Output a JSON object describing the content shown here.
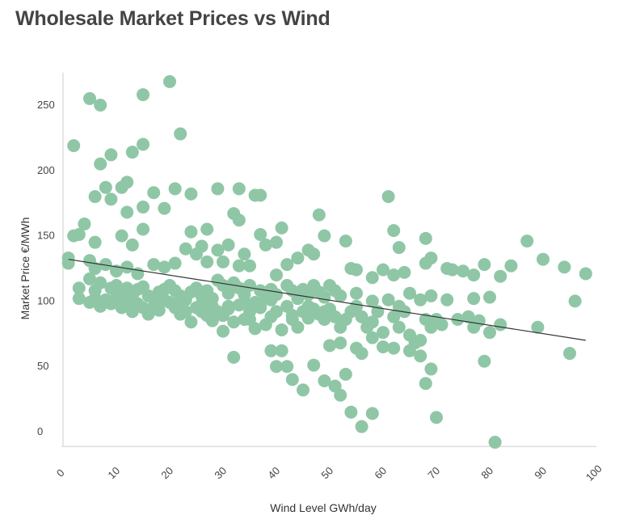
{
  "chart_data": {
    "type": "scatter",
    "title": "Wholesale Market Prices vs Wind",
    "xlabel": "Wind Level GWh/day",
    "ylabel": "Market Price €/MWh",
    "xlim": [
      0,
      100
    ],
    "ylim": [
      -10,
      275
    ],
    "x_ticks": [
      0,
      10,
      20,
      30,
      40,
      50,
      60,
      70,
      80,
      90,
      100
    ],
    "y_ticks": [
      0,
      50,
      100,
      150,
      200,
      250
    ],
    "grid": false,
    "colors": {
      "point": "#8fc7a6",
      "trendline": "#333333",
      "axis": "#cccccc",
      "text": "#444444"
    },
    "trendline": {
      "x": [
        1,
        98
      ],
      "y": [
        132,
        70
      ]
    },
    "points": [
      [
        2,
        219
      ],
      [
        5,
        255
      ],
      [
        7,
        250
      ],
      [
        15,
        258
      ],
      [
        20,
        268
      ],
      [
        22,
        228
      ],
      [
        15,
        220
      ],
      [
        7,
        205
      ],
      [
        9,
        212
      ],
      [
        13,
        214
      ],
      [
        8,
        187
      ],
      [
        9,
        178
      ],
      [
        11,
        187
      ],
      [
        12,
        191
      ],
      [
        6,
        180
      ],
      [
        15,
        172
      ],
      [
        17,
        183
      ],
      [
        19,
        171
      ],
      [
        21,
        186
      ],
      [
        24,
        182
      ],
      [
        29,
        186
      ],
      [
        33,
        186
      ],
      [
        36,
        181
      ],
      [
        37,
        181
      ],
      [
        61,
        180
      ],
      [
        12,
        168
      ],
      [
        4,
        159
      ],
      [
        2,
        150
      ],
      [
        3,
        151
      ],
      [
        6,
        145
      ],
      [
        11,
        150
      ],
      [
        13,
        143
      ],
      [
        15,
        155
      ],
      [
        24,
        153
      ],
      [
        26,
        142
      ],
      [
        27,
        155
      ],
      [
        31,
        143
      ],
      [
        32,
        167
      ],
      [
        33,
        162
      ],
      [
        37,
        151
      ],
      [
        38,
        143
      ],
      [
        40,
        145
      ],
      [
        41,
        156
      ],
      [
        44,
        133
      ],
      [
        46,
        139
      ],
      [
        48,
        166
      ],
      [
        49,
        150
      ],
      [
        53,
        146
      ],
      [
        62,
        154
      ],
      [
        63,
        141
      ],
      [
        68,
        148
      ],
      [
        87,
        146
      ],
      [
        1,
        129
      ],
      [
        1,
        133
      ],
      [
        5,
        131
      ],
      [
        6,
        125
      ],
      [
        8,
        128
      ],
      [
        10,
        123
      ],
      [
        12,
        126
      ],
      [
        14,
        121
      ],
      [
        17,
        128
      ],
      [
        19,
        126
      ],
      [
        21,
        129
      ],
      [
        23,
        140
      ],
      [
        25,
        136
      ],
      [
        27,
        130
      ],
      [
        29,
        139
      ],
      [
        30,
        130
      ],
      [
        33,
        127
      ],
      [
        34,
        136
      ],
      [
        35,
        127
      ],
      [
        42,
        128
      ],
      [
        47,
        136
      ],
      [
        54,
        125
      ],
      [
        55,
        124
      ],
      [
        58,
        118
      ],
      [
        60,
        124
      ],
      [
        62,
        120
      ],
      [
        64,
        122
      ],
      [
        68,
        129
      ],
      [
        69,
        133
      ],
      [
        72,
        125
      ],
      [
        73,
        124
      ],
      [
        75,
        123
      ],
      [
        77,
        120
      ],
      [
        79,
        128
      ],
      [
        82,
        119
      ],
      [
        84,
        127
      ],
      [
        90,
        132
      ],
      [
        94,
        126
      ],
      [
        98,
        121
      ],
      [
        3,
        110
      ],
      [
        5,
        117
      ],
      [
        6,
        108
      ],
      [
        7,
        114
      ],
      [
        9,
        110
      ],
      [
        10,
        112
      ],
      [
        11,
        106
      ],
      [
        12,
        110
      ],
      [
        13,
        103
      ],
      [
        14,
        109
      ],
      [
        15,
        111
      ],
      [
        16,
        104
      ],
      [
        18,
        107
      ],
      [
        19,
        109
      ],
      [
        20,
        112
      ],
      [
        21,
        108
      ],
      [
        22,
        104
      ],
      [
        23,
        101
      ],
      [
        24,
        107
      ],
      [
        25,
        110
      ],
      [
        26,
        104
      ],
      [
        27,
        108
      ],
      [
        28,
        102
      ],
      [
        29,
        116
      ],
      [
        30,
        112
      ],
      [
        31,
        106
      ],
      [
        32,
        114
      ],
      [
        33,
        110
      ],
      [
        34,
        105
      ],
      [
        35,
        112
      ],
      [
        37,
        108
      ],
      [
        38,
        103
      ],
      [
        39,
        109
      ],
      [
        40,
        105
      ],
      [
        42,
        112
      ],
      [
        43,
        108
      ],
      [
        44,
        102
      ],
      [
        45,
        109
      ],
      [
        46,
        105
      ],
      [
        47,
        112
      ],
      [
        48,
        107
      ],
      [
        49,
        103
      ],
      [
        50,
        112
      ],
      [
        51,
        108
      ],
      [
        52,
        104
      ],
      [
        55,
        106
      ],
      [
        58,
        100
      ],
      [
        61,
        101
      ],
      [
        63,
        96
      ],
      [
        65,
        106
      ],
      [
        67,
        101
      ],
      [
        69,
        104
      ],
      [
        72,
        101
      ],
      [
        77,
        102
      ],
      [
        80,
        103
      ],
      [
        96,
        100
      ],
      [
        3,
        102
      ],
      [
        5,
        99
      ],
      [
        6,
        102
      ],
      [
        7,
        96
      ],
      [
        8,
        101
      ],
      [
        9,
        98
      ],
      [
        10,
        103
      ],
      [
        11,
        95
      ],
      [
        12,
        100
      ],
      [
        13,
        92
      ],
      [
        14,
        98
      ],
      [
        15,
        95
      ],
      [
        16,
        90
      ],
      [
        17,
        96
      ],
      [
        18,
        93
      ],
      [
        20,
        99
      ],
      [
        21,
        95
      ],
      [
        22,
        97
      ],
      [
        23,
        92
      ],
      [
        24,
        84
      ],
      [
        25,
        95
      ],
      [
        26,
        92
      ],
      [
        27,
        89
      ],
      [
        28,
        96
      ],
      [
        29,
        92
      ],
      [
        30,
        89
      ],
      [
        31,
        94
      ],
      [
        32,
        84
      ],
      [
        33,
        97
      ],
      [
        34,
        86
      ],
      [
        35,
        92
      ],
      [
        36,
        79
      ],
      [
        37,
        95
      ],
      [
        38,
        82
      ],
      [
        39,
        88
      ],
      [
        40,
        92
      ],
      [
        41,
        78
      ],
      [
        42,
        96
      ],
      [
        43,
        86
      ],
      [
        44,
        80
      ],
      [
        45,
        92
      ],
      [
        46,
        87
      ],
      [
        47,
        94
      ],
      [
        48,
        90
      ],
      [
        49,
        86
      ],
      [
        50,
        94
      ],
      [
        51,
        88
      ],
      [
        52,
        80
      ],
      [
        53,
        86
      ],
      [
        54,
        92
      ],
      [
        55,
        96
      ],
      [
        56,
        88
      ],
      [
        57,
        80
      ],
      [
        58,
        84
      ],
      [
        59,
        92
      ],
      [
        60,
        76
      ],
      [
        62,
        88
      ],
      [
        63,
        80
      ],
      [
        64,
        92
      ],
      [
        65,
        74
      ],
      [
        66,
        68
      ],
      [
        67,
        70
      ],
      [
        68,
        86
      ],
      [
        69,
        80
      ],
      [
        70,
        86
      ],
      [
        71,
        82
      ],
      [
        74,
        86
      ],
      [
        76,
        88
      ],
      [
        77,
        80
      ],
      [
        78,
        85
      ],
      [
        80,
        76
      ],
      [
        82,
        82
      ],
      [
        89,
        80
      ],
      [
        11,
        108
      ],
      [
        13,
        97
      ],
      [
        17,
        103
      ],
      [
        19,
        101
      ],
      [
        22,
        90
      ],
      [
        26,
        98
      ],
      [
        28,
        85
      ],
      [
        31,
        96
      ],
      [
        34,
        99
      ],
      [
        36,
        96
      ],
      [
        43,
        89
      ],
      [
        46,
        96
      ],
      [
        49,
        92
      ],
      [
        52,
        68
      ],
      [
        55,
        64
      ],
      [
        56,
        60
      ],
      [
        58,
        72
      ],
      [
        60,
        65
      ],
      [
        62,
        64
      ],
      [
        65,
        62
      ],
      [
        67,
        58
      ],
      [
        69,
        48
      ],
      [
        32,
        57
      ],
      [
        39,
        62
      ],
      [
        41,
        62
      ],
      [
        40,
        50
      ],
      [
        42,
        50
      ],
      [
        43,
        40
      ],
      [
        45,
        32
      ],
      [
        47,
        51
      ],
      [
        49,
        39
      ],
      [
        50,
        66
      ],
      [
        51,
        35
      ],
      [
        52,
        28
      ],
      [
        53,
        44
      ],
      [
        54,
        15
      ],
      [
        56,
        4
      ],
      [
        58,
        14
      ],
      [
        68,
        37
      ],
      [
        70,
        11
      ],
      [
        79,
        54
      ],
      [
        95,
        60
      ],
      [
        30,
        77
      ],
      [
        35,
        86
      ],
      [
        81,
        -8
      ],
      [
        37,
        96
      ],
      [
        36,
        99
      ],
      [
        40,
        120
      ],
      [
        39,
        101
      ],
      [
        55,
        96
      ]
    ]
  }
}
